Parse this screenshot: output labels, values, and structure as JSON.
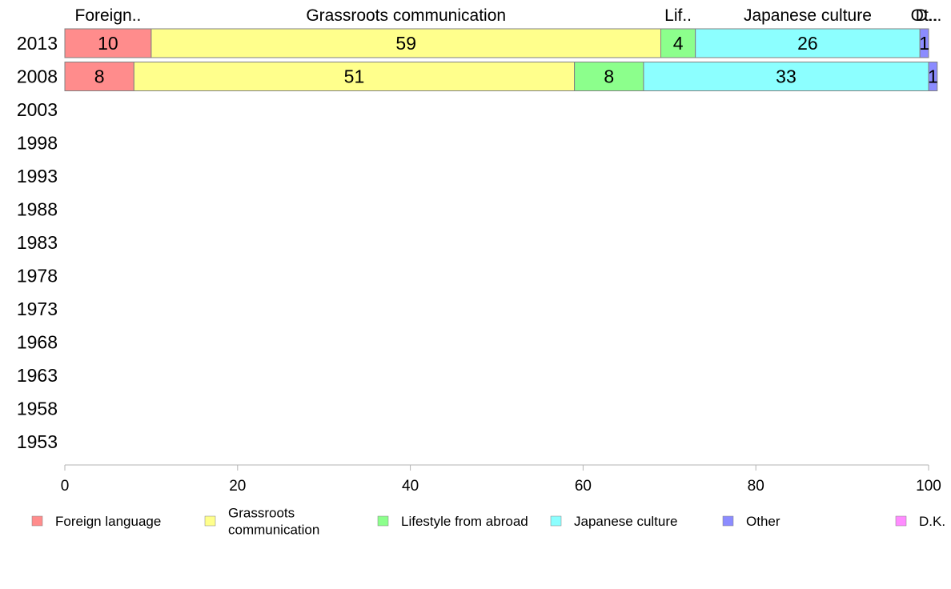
{
  "chart_data": {
    "type": "bar",
    "orientation": "horizontal",
    "stacked": true,
    "categories": [
      "2013",
      "2008",
      "2003",
      "1998",
      "1993",
      "1988",
      "1983",
      "1978",
      "1973",
      "1968",
      "1963",
      "1958",
      "1953"
    ],
    "series": [
      {
        "name": "Foreign language",
        "color": "#ff8c8c",
        "top_label": "Foreign..",
        "values": [
          10,
          8,
          null,
          null,
          null,
          null,
          null,
          null,
          null,
          null,
          null,
          null,
          null
        ]
      },
      {
        "name": "Grassroots communication",
        "legend_lines": [
          "Grassroots",
          "communication"
        ],
        "color": "#ffff8c",
        "top_label": "Grassroots communication",
        "values": [
          59,
          51,
          null,
          null,
          null,
          null,
          null,
          null,
          null,
          null,
          null,
          null,
          null
        ]
      },
      {
        "name": "Lifestyle from abroad",
        "color": "#8cff8c",
        "top_label": "Lif..",
        "values": [
          4,
          8,
          null,
          null,
          null,
          null,
          null,
          null,
          null,
          null,
          null,
          null,
          null
        ]
      },
      {
        "name": "Japanese culture",
        "color": "#8cffff",
        "top_label": "Japanese culture",
        "values": [
          26,
          33,
          null,
          null,
          null,
          null,
          null,
          null,
          null,
          null,
          null,
          null,
          null
        ]
      },
      {
        "name": "Other",
        "color": "#8c8cff",
        "top_label": "Ot..",
        "values": [
          1,
          1,
          null,
          null,
          null,
          null,
          null,
          null,
          null,
          null,
          null,
          null,
          null
        ]
      },
      {
        "name": "D.K.",
        "color": "#ff8cff",
        "top_label": "D...",
        "values": [
          0,
          0,
          null,
          null,
          null,
          null,
          null,
          null,
          null,
          null,
          null,
          null,
          null
        ]
      }
    ],
    "xlim": [
      0,
      100
    ],
    "xticks": [
      0,
      20,
      40,
      60,
      80,
      100
    ],
    "title": "",
    "xlabel": "",
    "ylabel": "",
    "grid": false,
    "legend_position": "bottom"
  }
}
